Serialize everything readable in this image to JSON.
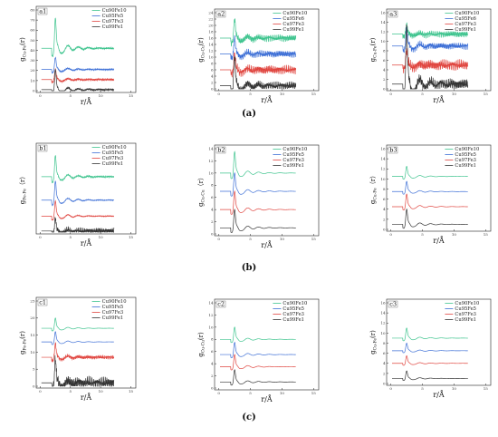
{
  "colors": {
    "Cu90Fe10": "#3ec48e",
    "Cu95Fe5": "#3d6fd6",
    "Cu97Fe3": "#e0453f",
    "Cu99Fe1": "#333333"
  },
  "row_captions": [
    "(a)",
    "(b)",
    "(c)"
  ],
  "chart_data": [
    {
      "type": "line",
      "tag": "a1",
      "ylabel_main": "g",
      "ylabel_sub": "Cu-Fe",
      "ylabel_end": "(r)",
      "xlabel": "r/Å",
      "xticks": [
        "0",
        "5",
        "10",
        "15"
      ],
      "xlim": [
        0,
        15
      ],
      "yticks": [
        "0",
        "10",
        "20",
        "30",
        "40",
        "50",
        "60",
        "70",
        "80"
      ],
      "ylim": [
        0,
        80
      ],
      "legend": [
        "Cu90Fe10",
        "Cu95Fe5",
        "Cu97Fe3",
        "Cu99Fe1"
      ],
      "series": [
        {
          "name": "Cu90Fe10",
          "offset": 42,
          "peak": 30
        },
        {
          "name": "Cu95Fe5",
          "offset": 21,
          "peak": 12
        },
        {
          "name": "Cu97Fe3",
          "offset": 11,
          "peak": 10
        },
        {
          "name": "Cu99Fe1",
          "offset": 1,
          "peak": 20
        }
      ],
      "r0": 2.5,
      "noise": [
        0.6,
        0.5,
        0.8,
        0.7
      ]
    },
    {
      "type": "line",
      "tag": "a2",
      "ylabel_main": "g",
      "ylabel_sub": "Cu-Cu",
      "ylabel_end": "(r)",
      "xlabel": "r/Å",
      "xticks": [
        "0",
        "5",
        "10",
        "15"
      ],
      "xlim": [
        0,
        15
      ],
      "yticks": [
        "0",
        "2",
        "4",
        "6",
        "8",
        "10",
        "12",
        "14",
        "16",
        "18",
        "20",
        "22",
        "24"
      ],
      "ylim": [
        0,
        24
      ],
      "legend": [
        "Cu90Fe10",
        "Cu95Fe6",
        "Cu97Fe3",
        "Cu99Fe1"
      ],
      "series": [
        {
          "name": "Cu90Fe10",
          "offset": 16,
          "peak": 6
        },
        {
          "name": "Cu95Fe6",
          "offset": 11,
          "peak": 5
        },
        {
          "name": "Cu97Fe3",
          "offset": 6,
          "peak": 5
        },
        {
          "name": "Cu99Fe1",
          "offset": 1,
          "peak": 9
        }
      ],
      "r0": 2.5,
      "noise": [
        0.8,
        0.8,
        1.0,
        0.9
      ]
    },
    {
      "type": "line",
      "tag": "a3",
      "ylabel_main": "g",
      "ylabel_sub": "Cu-Fe",
      "ylabel_end": "(r)",
      "xlabel": "r/Å",
      "xticks": [
        "0",
        "5",
        "10",
        "15"
      ],
      "xlim": [
        0,
        15
      ],
      "yticks": [
        "0",
        "2",
        "4",
        "6",
        "8",
        "10",
        "12",
        "14",
        "16"
      ],
      "ylim": [
        0,
        16
      ],
      "legend": [
        "Cu90Fe10",
        "Cu95Fe6",
        "Cu97Fe3",
        "Cu99Fe1"
      ],
      "series": [
        {
          "name": "Cu90Fe10",
          "offset": 11.5,
          "peak": 2
        },
        {
          "name": "Cu95Fe6",
          "offset": 9,
          "peak": 4
        },
        {
          "name": "Cu97Fe3",
          "offset": 5,
          "peak": 3
        },
        {
          "name": "Cu99Fe1",
          "offset": 1,
          "peak": 12
        }
      ],
      "r0": 2.5,
      "noise": [
        0.5,
        0.5,
        0.8,
        0.8
      ]
    },
    {
      "type": "line",
      "tag": "b1",
      "ylabel_main": "g",
      "ylabel_sub": "Fe-Fe",
      "ylabel_end": "（r）",
      "xlabel": "r/Å",
      "xticks": [
        "0",
        "5",
        "10",
        "15"
      ],
      "xlim": [
        0,
        15
      ],
      "yticks": [],
      "ylim": [
        0,
        80
      ],
      "legend": [
        "Cu90Fe10",
        "Cu95Fe5",
        "Cu97Fe3",
        "Cu99Fe1"
      ],
      "series": [
        {
          "name": "Cu90Fe10",
          "offset": 52,
          "peak": 20
        },
        {
          "name": "Cu95Fe5",
          "offset": 30,
          "peak": 18
        },
        {
          "name": "Cu97Fe3",
          "offset": 15,
          "peak": 14
        },
        {
          "name": "Cu99Fe1",
          "offset": 1,
          "peak": 12
        }
      ],
      "r0": 2.5,
      "noise": [
        0.5,
        0.3,
        0.3,
        2.2
      ]
    },
    {
      "type": "line",
      "tag": "b2",
      "ylabel_main": "g",
      "ylabel_sub": "Cu-Cu",
      "ylabel_end": "（r）",
      "xlabel": "r/Å",
      "xticks": [
        "0",
        "5",
        "10",
        "15"
      ],
      "xlim": [
        0,
        15
      ],
      "yticks": [
        "0",
        "2",
        "4",
        "6",
        "8",
        "10",
        "12",
        "14"
      ],
      "ylim": [
        0,
        14
      ],
      "legend": [
        "Cu90Fe10",
        "Cu95Fe5",
        "Cu97Fe3",
        "Cu99Fe1"
      ],
      "series": [
        {
          "name": "Cu90Fe10",
          "offset": 10,
          "peak": 3.5
        },
        {
          "name": "Cu95Fe5",
          "offset": 7,
          "peak": 3
        },
        {
          "name": "Cu97Fe3",
          "offset": 4,
          "peak": 3
        },
        {
          "name": "Cu99Fe1",
          "offset": 1,
          "peak": 3
        }
      ],
      "r0": 2.5,
      "noise": [
        0,
        0,
        0,
        0
      ]
    },
    {
      "type": "line",
      "tag": "b3",
      "ylabel_main": "g",
      "ylabel_sub": "Cu-Fe",
      "ylabel_end": "（r）",
      "xlabel": "r/Å",
      "xticks": [
        "0",
        "5",
        "10",
        "15"
      ],
      "xlim": [
        0,
        15
      ],
      "yticks": [
        "0",
        "2",
        "4",
        "6",
        "8",
        "10",
        "12",
        "14",
        "16"
      ],
      "ylim": [
        0,
        16
      ],
      "legend": [
        "Cu90Fe10",
        "Cu95Fe5",
        "Cu97Fe3",
        "Cu99Fe1"
      ],
      "series": [
        {
          "name": "Cu90Fe10",
          "offset": 10.5,
          "peak": 2
        },
        {
          "name": "Cu95Fe5",
          "offset": 7.5,
          "peak": 2
        },
        {
          "name": "Cu97Fe3",
          "offset": 4.5,
          "peak": 2.5
        },
        {
          "name": "Cu99Fe1",
          "offset": 1,
          "peak": 3
        }
      ],
      "r0": 2.5,
      "noise": [
        0,
        0,
        0,
        0
      ]
    },
    {
      "type": "line",
      "tag": "c1",
      "ylabel_main": "g",
      "ylabel_sub": "Fe-Fe",
      "ylabel_end": "(r)",
      "xlabel": "r/Å",
      "xticks": [
        "0",
        "5",
        "10",
        "15"
      ],
      "xlim": [
        0,
        15
      ],
      "yticks": [
        "0",
        "5",
        "10",
        "15",
        "20",
        "25"
      ],
      "ylim": [
        0,
        25
      ],
      "legend": [
        "Cu90Fe10",
        "Cu95Fe5",
        "Cu97Fe3",
        "Cu99Fe1"
      ],
      "series": [
        {
          "name": "Cu90Fe10",
          "offset": 17,
          "peak": 3
        },
        {
          "name": "Cu95Fe5",
          "offset": 13,
          "peak": 3
        },
        {
          "name": "Cu97Fe3",
          "offset": 8.5,
          "peak": 4
        },
        {
          "name": "Cu99Fe1",
          "offset": 1,
          "peak": 7
        }
      ],
      "r0": 2.5,
      "noise": [
        0,
        0,
        0.4,
        1.2
      ]
    },
    {
      "type": "line",
      "tag": "c2",
      "ylabel_main": "g",
      "ylabel_sub": "Cu-Cu",
      "ylabel_end": "(r)",
      "xlabel": "r/Å",
      "xticks": [
        "0",
        "5",
        "10",
        "15"
      ],
      "xlim": [
        0,
        15
      ],
      "yticks": [
        "0",
        "2",
        "4",
        "6",
        "8",
        "10",
        "12",
        "14"
      ],
      "ylim": [
        0,
        14
      ],
      "legend": [
        "Cu90Fe10",
        "Cu95Fe5",
        "Cu97Fe3",
        "Cu99Fe1"
      ],
      "series": [
        {
          "name": "Cu90Fe10",
          "offset": 8,
          "peak": 2
        },
        {
          "name": "Cu95Fe5",
          "offset": 5.5,
          "peak": 2
        },
        {
          "name": "Cu97Fe3",
          "offset": 3.5,
          "peak": 2
        },
        {
          "name": "Cu99Fe1",
          "offset": 1,
          "peak": 2
        }
      ],
      "r0": 2.5,
      "noise": [
        0,
        0,
        0,
        0
      ]
    },
    {
      "type": "line",
      "tag": "c3",
      "ylabel_main": "g",
      "ylabel_sub": "Cu-Fe",
      "ylabel_end": "(r)",
      "xlabel": "r/Å",
      "xticks": [
        "0",
        "5",
        "10",
        "15"
      ],
      "xlim": [
        0,
        15
      ],
      "yticks": [
        "0",
        "2",
        "4",
        "6",
        "8",
        "10",
        "12",
        "14",
        "16"
      ],
      "ylim": [
        0,
        16
      ],
      "legend": [
        "Cu90Fe10",
        "Cu95Fe5",
        "Cu97Fe3",
        "Cu99Fe1"
      ],
      "series": [
        {
          "name": "Cu90Fe10",
          "offset": 9,
          "peak": 2
        },
        {
          "name": "Cu95Fe5",
          "offset": 6.5,
          "peak": 1.5
        },
        {
          "name": "Cu97Fe3",
          "offset": 4,
          "peak": 1.5
        },
        {
          "name": "Cu99Fe1",
          "offset": 1,
          "peak": 1.5
        }
      ],
      "r0": 2.5,
      "noise": [
        0,
        0,
        0,
        0
      ]
    }
  ]
}
